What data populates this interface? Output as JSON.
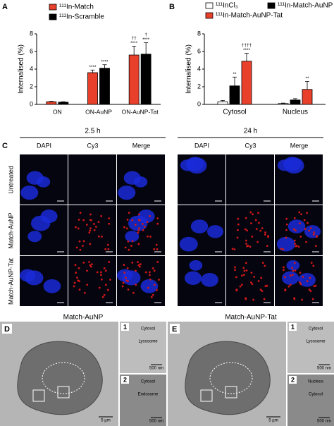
{
  "panels": {
    "a": "A",
    "b": "B",
    "c": "C",
    "d": "D",
    "e": "E"
  },
  "chart_data": [
    {
      "type": "bar",
      "ylabel": "Internalised (%)",
      "categories": [
        "ON",
        "ON-AuNP",
        "ON-AuNP-Tat"
      ],
      "series": [
        {
          "name": "¹¹¹In-Match",
          "color": "#e8402a",
          "values": [
            0.3,
            3.6,
            5.6
          ],
          "errors": [
            0.05,
            0.3,
            1.0
          ],
          "labels": [
            [],
            [
              "****"
            ],
            [
              "††",
              "****"
            ]
          ]
        },
        {
          "name": "¹¹¹In-Scramble",
          "color": "#000000",
          "values": [
            0.25,
            4.1,
            5.7
          ],
          "errors": [
            0.05,
            0.4,
            1.3
          ],
          "labels": [
            [],
            [
              "****"
            ],
            [
              "†",
              "****"
            ]
          ]
        }
      ],
      "ylim": [
        0,
        8
      ],
      "yticks": [
        0,
        2,
        4,
        6,
        8
      ]
    },
    {
      "type": "bar",
      "ylabel": "Internalised (%)",
      "categories": [
        "Cytosol",
        "Nucleus"
      ],
      "series": [
        {
          "name": "¹¹¹InCl₃",
          "color": "#ffffff",
          "values": [
            0.3,
            0.1
          ],
          "errors": [
            0.15,
            0.05
          ],
          "labels": [
            [],
            []
          ]
        },
        {
          "name": "¹¹¹In-Match-AuNP",
          "color": "#000000",
          "values": [
            2.1,
            0.5
          ],
          "errors": [
            1.0,
            0.15
          ],
          "labels": [
            [
              "**"
            ],
            []
          ]
        },
        {
          "name": "¹¹¹In-Match-AuNP-Tat",
          "color": "#e8402a",
          "values": [
            4.9,
            1.7
          ],
          "errors": [
            0.9,
            0.9
          ],
          "labels": [
            [
              "††††",
              "****"
            ],
            [
              "**"
            ]
          ]
        }
      ],
      "ylim": [
        0,
        8
      ],
      "yticks": [
        0,
        2,
        4,
        6,
        8
      ]
    }
  ],
  "microscopy": {
    "times": [
      "2.5 h",
      "24 h"
    ],
    "channels": [
      "DAPI",
      "Cy3",
      "Merge"
    ],
    "rows": [
      "Untreated",
      "Match-AuNP",
      "Match-AuNP-Tat"
    ]
  },
  "em": {
    "d": {
      "title": "Match-AuNP",
      "scale": "5 µm",
      "insets": [
        {
          "n": "1",
          "labels": [
            "Cytosol",
            "Lysosome"
          ],
          "scale": "500 nm"
        },
        {
          "n": "2",
          "labels": [
            "Cytosol",
            "Endosome"
          ],
          "scale": "500 nm"
        }
      ]
    },
    "e": {
      "title": "Match-AuNP-Tat",
      "scale": "5 µm",
      "insets": [
        {
          "n": "1",
          "labels": [
            "Cytosol",
            "Lysosome"
          ],
          "scale": "500 nm"
        },
        {
          "n": "2",
          "labels": [
            "Nucleus",
            "Cytosol"
          ],
          "scale": "500 nm"
        }
      ]
    }
  }
}
